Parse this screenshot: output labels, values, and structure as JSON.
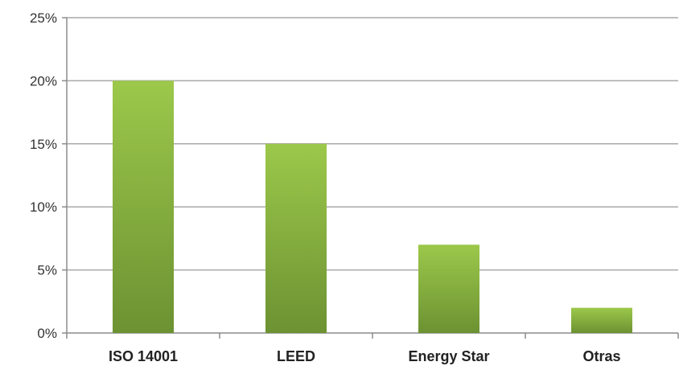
{
  "chart_data": {
    "type": "bar",
    "categories": [
      "ISO 14001",
      "LEED",
      "Energy Star",
      "Otras"
    ],
    "values": [
      20,
      15,
      7,
      2
    ],
    "title": "",
    "xlabel": "",
    "ylabel": "",
    "ylim": [
      0,
      25
    ],
    "yticks": [
      0,
      5,
      10,
      15,
      20,
      25
    ],
    "ytick_format": "{v}%",
    "ytick_labels": [
      "0%",
      "5%",
      "10%",
      "15%",
      "20%",
      "25%"
    ],
    "grid": true,
    "legend": "none",
    "colors": {
      "bar_top": "#9CC84B",
      "bar_bottom": "#6C9232",
      "gridline": "#A9A9A9",
      "axis": "#8C8C8C"
    }
  }
}
